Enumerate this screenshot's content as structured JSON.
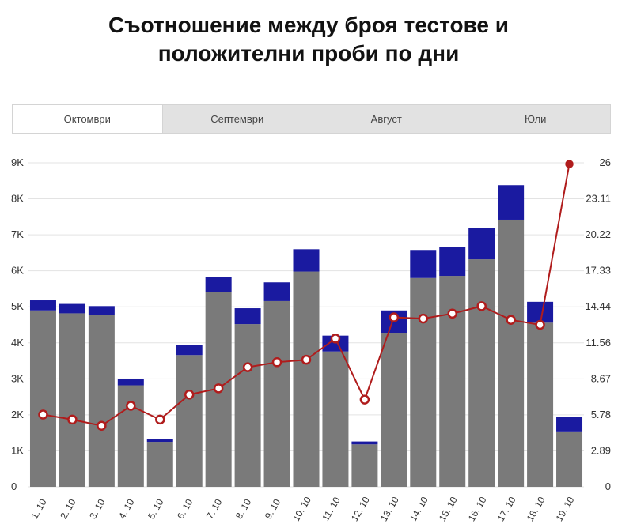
{
  "title_line1": "Съотношение между броя тестове и",
  "title_line2": "положителни проби по дни",
  "tabs": [
    {
      "label": "Октомври",
      "active": true
    },
    {
      "label": "Септември",
      "active": false
    },
    {
      "label": "Август",
      "active": false
    },
    {
      "label": "Юли",
      "active": false
    }
  ],
  "colors": {
    "bar_base": "#7a7a7a",
    "bar_top": "#1a1aa0",
    "line": "#b01c1c",
    "marker_fill": "#ffffff",
    "grid": "#e3e3e3"
  },
  "chart_data": {
    "type": "bar",
    "categories": [
      "1. 10",
      "2. 10",
      "3. 10",
      "4. 10",
      "5. 10",
      "6. 10",
      "7. 10",
      "8. 10",
      "9. 10",
      "10. 10",
      "11. 10",
      "12. 10",
      "13. 10",
      "14. 10",
      "15. 10",
      "16. 10",
      "17. 10",
      "18. 10",
      "19. 10"
    ],
    "bar_series": [
      {
        "values": [
          4900,
          4820,
          4780,
          2820,
          1250,
          3660,
          5400,
          4520,
          5160,
          5980,
          3760,
          1180,
          4280,
          5800,
          5860,
          6320,
          7420,
          4560,
          1540
        ]
      },
      {
        "values": [
          280,
          260,
          240,
          180,
          70,
          280,
          420,
          440,
          520,
          620,
          440,
          80,
          620,
          780,
          800,
          880,
          960,
          580,
          400
        ]
      }
    ],
    "stacked": true,
    "line_series": {
      "values": [
        5.8,
        5.4,
        4.9,
        6.5,
        5.4,
        7.4,
        7.9,
        9.6,
        10.0,
        10.2,
        11.9,
        7.0,
        13.6,
        13.5,
        13.9,
        14.5,
        13.4,
        13.0,
        25.9
      ]
    },
    "y_left": {
      "ticks": [
        "0",
        "1K",
        "2K",
        "3K",
        "4K",
        "5K",
        "6K",
        "7K",
        "8K",
        "9K"
      ],
      "range": [
        0,
        9000
      ]
    },
    "y_right": {
      "ticks": [
        "0",
        "2.89",
        "5.78",
        "8.67",
        "11.56",
        "14.44",
        "17.33",
        "20.22",
        "23.11",
        "26"
      ],
      "range": [
        0,
        26
      ]
    },
    "grid": true
  }
}
